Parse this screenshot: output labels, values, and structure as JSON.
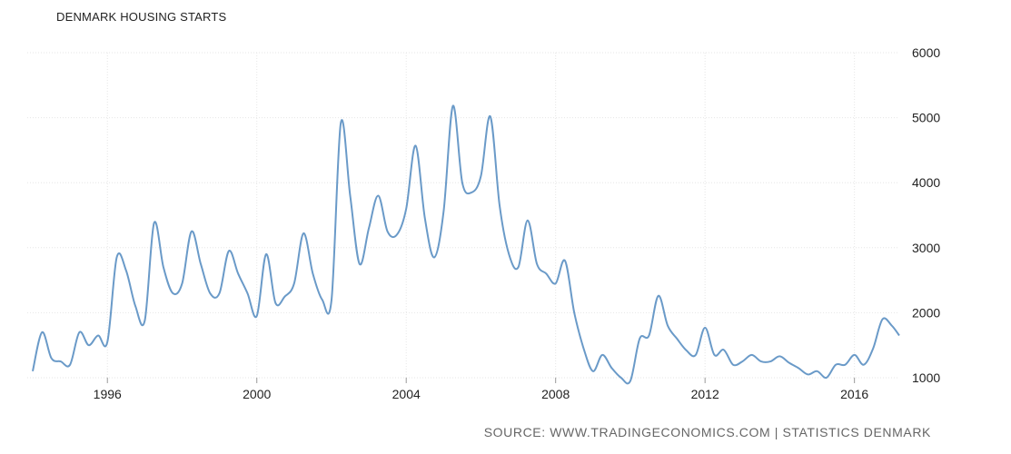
{
  "source": "SOURCE: WWW.TRADINGECONOMICS.COM | STATISTICS DENMARK",
  "colors": {
    "line": "#6a9ac8",
    "grid": "#e6e6e6"
  },
  "chart_data": {
    "type": "line",
    "title": "DENMARK HOUSING STARTS",
    "xlabel": "",
    "ylabel": "",
    "xlim": [
      1994.0,
      2017.2
    ],
    "ylim": [
      1000,
      6000
    ],
    "x_ticks": [
      1996,
      2000,
      2004,
      2008,
      2012,
      2016
    ],
    "y_ticks": [
      1000,
      2000,
      3000,
      4000,
      5000,
      6000
    ],
    "y_axis_side": "right",
    "grid": true,
    "series": [
      {
        "x": [
          1994.0,
          1994.25,
          1994.5,
          1994.75,
          1995.0,
          1995.25,
          1995.5,
          1995.75,
          1996.0,
          1996.25,
          1996.5,
          1996.75,
          1997.0,
          1997.25,
          1997.5,
          1997.75,
          1998.0,
          1998.25,
          1998.5,
          1998.75,
          1999.0,
          1999.25,
          1999.5,
          1999.75,
          2000.0,
          2000.25,
          2000.5,
          2000.75,
          2001.0,
          2001.25,
          2001.5,
          2001.75,
          2002.0,
          2002.25,
          2002.5,
          2002.75,
          2003.0,
          2003.25,
          2003.5,
          2003.75,
          2004.0,
          2004.25,
          2004.5,
          2004.75,
          2005.0,
          2005.25,
          2005.5,
          2005.75,
          2006.0,
          2006.25,
          2006.5,
          2006.75,
          2007.0,
          2007.25,
          2007.5,
          2007.75,
          2008.0,
          2008.25,
          2008.5,
          2008.75,
          2009.0,
          2009.25,
          2009.5,
          2009.75,
          2010.0,
          2010.25,
          2010.5,
          2010.75,
          2011.0,
          2011.25,
          2011.5,
          2011.75,
          2012.0,
          2012.25,
          2012.5,
          2012.75,
          2013.0,
          2013.25,
          2013.5,
          2013.75,
          2014.0,
          2014.25,
          2014.5,
          2014.75,
          2015.0,
          2015.25,
          2015.5,
          2015.75,
          2016.0,
          2016.25,
          2016.5,
          2016.75,
          2017.0,
          2017.2
        ],
        "values": [
          1100,
          1700,
          1300,
          1250,
          1200,
          1700,
          1500,
          1650,
          1550,
          2850,
          2650,
          2100,
          1880,
          3380,
          2700,
          2300,
          2450,
          3250,
          2750,
          2300,
          2300,
          2950,
          2600,
          2300,
          1950,
          2900,
          2150,
          2250,
          2450,
          3220,
          2600,
          2200,
          2200,
          4920,
          3800,
          2750,
          3300,
          3800,
          3250,
          3200,
          3600,
          4570,
          3450,
          2850,
          3550,
          5180,
          4000,
          3850,
          4100,
          5020,
          3650,
          2900,
          2700,
          3420,
          2750,
          2600,
          2450,
          2800,
          2000,
          1450,
          1100,
          1350,
          1150,
          1000,
          950,
          1600,
          1650,
          2260,
          1800,
          1600,
          1420,
          1350,
          1770,
          1350,
          1430,
          1200,
          1250,
          1350,
          1250,
          1250,
          1330,
          1230,
          1150,
          1050,
          1100,
          1000,
          1200,
          1200,
          1350,
          1200,
          1450,
          1900,
          1800,
          1650
        ]
      }
    ]
  }
}
